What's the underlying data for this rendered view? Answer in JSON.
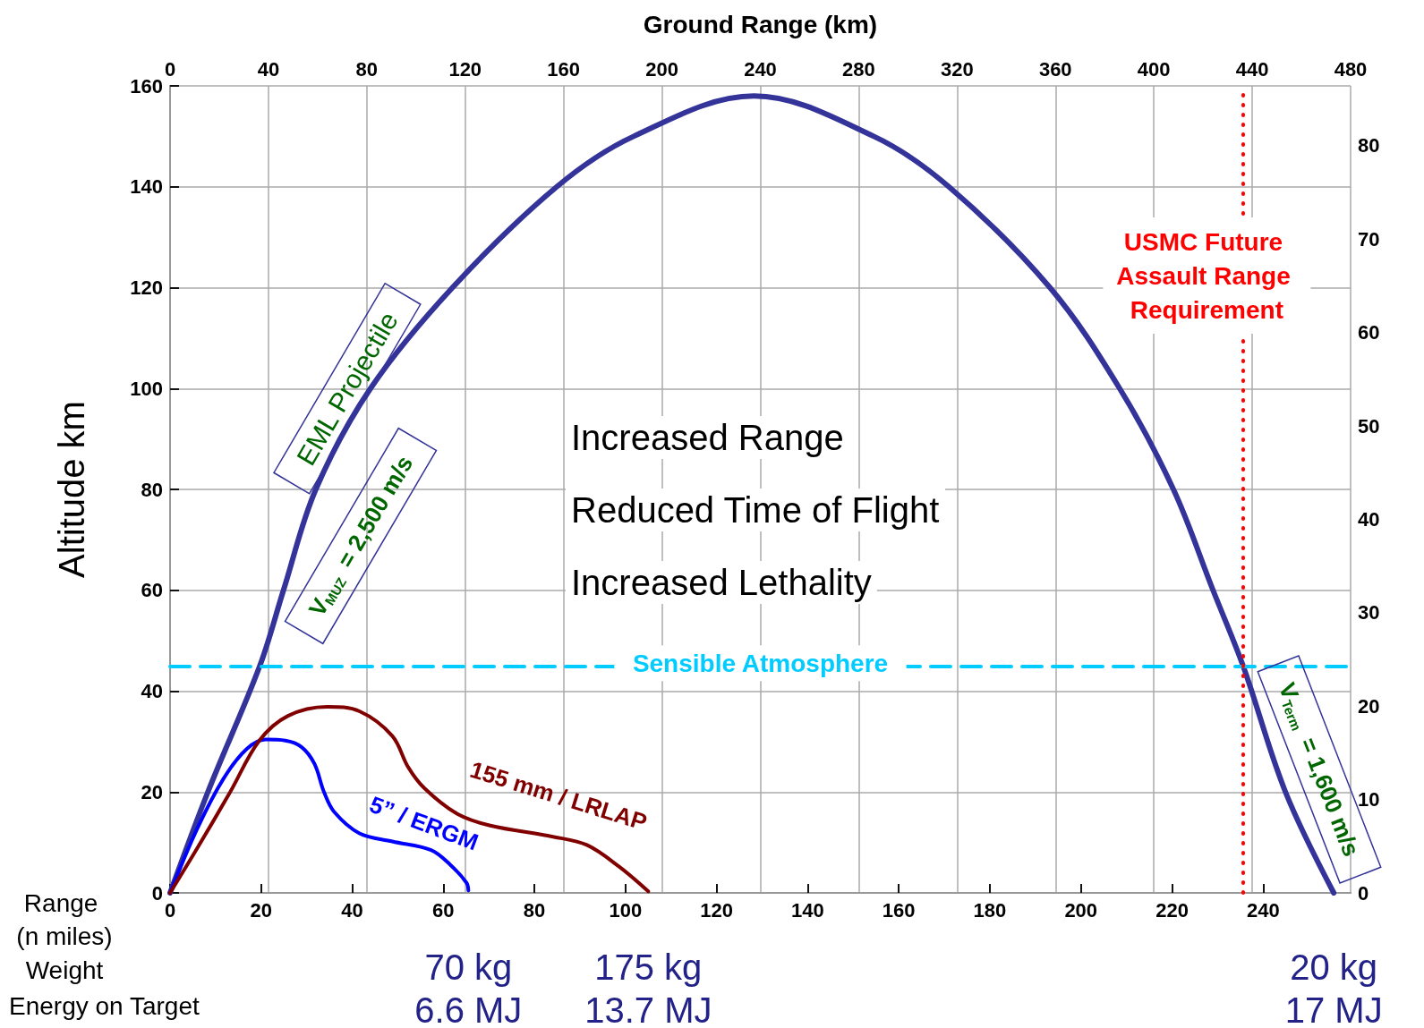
{
  "chart_data": {
    "type": "line",
    "x2label": "Ground Range (km)",
    "ylabel": "Altitude km",
    "xlabel": "Range (n miles)",
    "xlim": [
      0,
      259.2
    ],
    "xticks": [
      0,
      20,
      40,
      60,
      80,
      100,
      120,
      140,
      160,
      180,
      200,
      220,
      240
    ],
    "x2lim": [
      0,
      480
    ],
    "x2ticks": [
      0,
      40,
      80,
      120,
      160,
      200,
      240,
      280,
      320,
      360,
      400,
      440,
      480
    ],
    "ylim": [
      0,
      160
    ],
    "yticks": [
      0,
      20,
      40,
      60,
      80,
      100,
      120,
      140,
      160
    ],
    "y2lim": [
      0,
      86.4
    ],
    "y2ticks": [
      0,
      10,
      20,
      30,
      40,
      50,
      60,
      70,
      80
    ],
    "grid": true,
    "legend": false,
    "marker": "none",
    "line_style": "solid",
    "series": [
      {
        "name": "EML Projectile",
        "color": "#333399",
        "x": [
          0,
          8.3,
          19.7,
          24.9,
          32,
          44,
          62,
          84.9,
          101.8,
          128.2,
          154.5,
          171,
          193.2,
          208.5,
          220.3,
          229,
          235.6,
          244.9,
          255.5
        ],
        "values": [
          0,
          20,
          45,
          60,
          80,
          100,
          120,
          140,
          150,
          158,
          150,
          140,
          120,
          100,
          80,
          60,
          45,
          20,
          0
        ]
      },
      {
        "name": "5” / ERGM",
        "color": "#0000ff",
        "x": [
          0,
          6,
          11.7,
          16.8,
          21,
          25.3,
          28.9,
          31.7,
          33.8,
          36,
          41.6,
          48.8,
          57.3,
          61.5,
          65.1,
          65.5
        ],
        "values": [
          0,
          12.8,
          22.6,
          28.5,
          30.4,
          30.2,
          28.9,
          25.6,
          20,
          16.1,
          11.8,
          10.2,
          8.5,
          5.6,
          2,
          0.5
        ]
      },
      {
        "name": "155 mm / LRLAP",
        "color": "#800000",
        "x": [
          0,
          6,
          13.2,
          19.6,
          25.9,
          34.5,
          41.6,
          48.8,
          52.3,
          55.9,
          63,
          70.1,
          84.3,
          91.5,
          98.6,
          105
        ],
        "values": [
          0,
          8.9,
          20,
          30.2,
          35.1,
          36.9,
          36,
          31.1,
          24.9,
          20.7,
          15.7,
          13.4,
          11.1,
          9.5,
          5.2,
          0.3
        ]
      }
    ],
    "ref_lines": [
      {
        "axis": "y",
        "value": 45,
        "label": "Sensible Atmosphere",
        "color": "#00ccff",
        "line_style": "dashed"
      },
      {
        "axis": "x",
        "value": 235.5,
        "label": "USMC Future Assault Range Requirement",
        "color": "#ff0000",
        "line_style": "dotted"
      }
    ],
    "annotations": [
      "Increased Range",
      "Reduced Time of Flight",
      "Increased Lethality",
      "Weight",
      "Energy on Target",
      "V$_{MUZ}$ = 2,500 m/s",
      "V$_{Term}$ = 1,600 m/s",
      {
        "text": "70 kg",
        "x": 65.5,
        "y": 0
      },
      {
        "text": "6.6 MJ",
        "x": 65.5,
        "y": 0
      },
      {
        "text": "175 kg",
        "x": 105,
        "y": 0
      },
      {
        "text": "13.7 MJ",
        "x": 105,
        "y": 0
      },
      {
        "text": "20 kg",
        "x": 255.5,
        "y": 0
      },
      {
        "text": "17 MJ",
        "x": 255.5,
        "y": 0
      }
    ]
  }
}
